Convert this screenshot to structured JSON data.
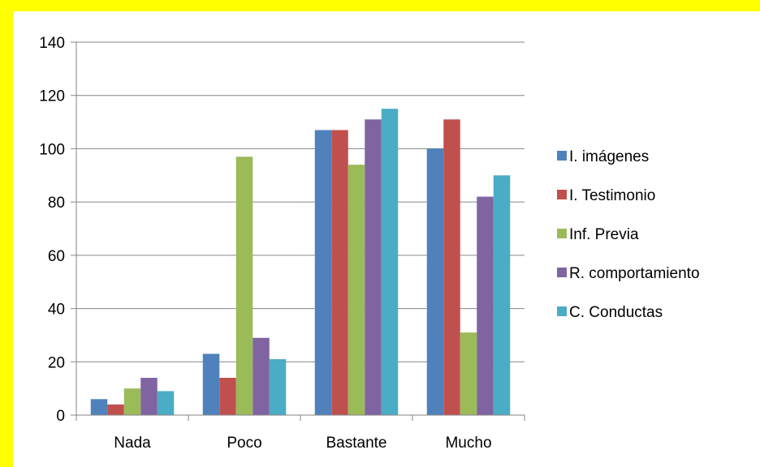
{
  "chart_data": {
    "type": "bar",
    "categories": [
      "Nada",
      "Poco",
      "Bastante",
      "Mucho"
    ],
    "series": [
      {
        "name": "I. imágenes",
        "color": "#4f81bd",
        "values": [
          6,
          23,
          107,
          100
        ]
      },
      {
        "name": "I. Testimonio",
        "color": "#c0504d",
        "values": [
          4,
          14,
          107,
          111
        ]
      },
      {
        "name": "Inf. Previa",
        "color": "#9bbb59",
        "values": [
          10,
          97,
          94,
          31
        ]
      },
      {
        "name": "R. comportamiento",
        "color": "#8064a2",
        "values": [
          14,
          29,
          111,
          82
        ]
      },
      {
        "name": "C. Conductas",
        "color": "#4bacc6",
        "values": [
          9,
          21,
          115,
          90
        ]
      }
    ],
    "ylim": [
      0,
      140
    ],
    "yticks": [
      "0",
      "20",
      "40",
      "60",
      "80",
      "100",
      "120",
      "140"
    ],
    "grid": true,
    "legend_position": "right",
    "title": "",
    "xlabel": "",
    "ylabel": ""
  },
  "colors": {
    "frame": "#ffff00",
    "background": "#ffffff",
    "gridline": "#868686"
  }
}
